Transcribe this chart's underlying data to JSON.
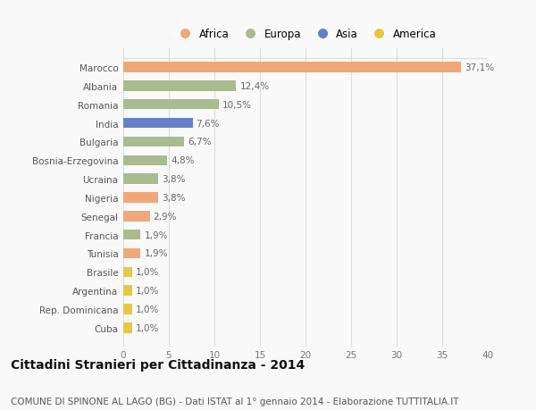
{
  "countries": [
    "Marocco",
    "Albania",
    "Romania",
    "India",
    "Bulgaria",
    "Bosnia-Erzegovina",
    "Ucraina",
    "Nigeria",
    "Senegal",
    "Francia",
    "Tunisia",
    "Brasile",
    "Argentina",
    "Rep. Dominicana",
    "Cuba"
  ],
  "values": [
    37.1,
    12.4,
    10.5,
    7.6,
    6.7,
    4.8,
    3.8,
    3.8,
    2.9,
    1.9,
    1.9,
    1.0,
    1.0,
    1.0,
    1.0
  ],
  "labels": [
    "37,1%",
    "12,4%",
    "10,5%",
    "7,6%",
    "6,7%",
    "4,8%",
    "3,8%",
    "3,8%",
    "2,9%",
    "1,9%",
    "1,9%",
    "1,0%",
    "1,0%",
    "1,0%",
    "1,0%"
  ],
  "continents": [
    "Africa",
    "Europa",
    "Europa",
    "Asia",
    "Europa",
    "Europa",
    "Europa",
    "Africa",
    "Africa",
    "Europa",
    "Africa",
    "America",
    "America",
    "America",
    "America"
  ],
  "colors": {
    "Africa": "#F0A878",
    "Europa": "#AABB90",
    "Asia": "#6680C8",
    "America": "#E8C840"
  },
  "legend_order": [
    "Africa",
    "Europa",
    "Asia",
    "America"
  ],
  "title": "Cittadini Stranieri per Cittadinanza - 2014",
  "subtitle": "COMUNE DI SPINONE AL LAGO (BG) - Dati ISTAT al 1° gennaio 2014 - Elaborazione TUTTITALIA.IT",
  "xlim": [
    0,
    40
  ],
  "xticks": [
    0,
    5,
    10,
    15,
    20,
    25,
    30,
    35,
    40
  ],
  "background_color": "#f9f9f9",
  "grid_color": "#dddddd",
  "bar_height": 0.55,
  "title_fontsize": 10,
  "subtitle_fontsize": 7.5,
  "label_fontsize": 7.5,
  "tick_fontsize": 7.5,
  "legend_fontsize": 8.5
}
